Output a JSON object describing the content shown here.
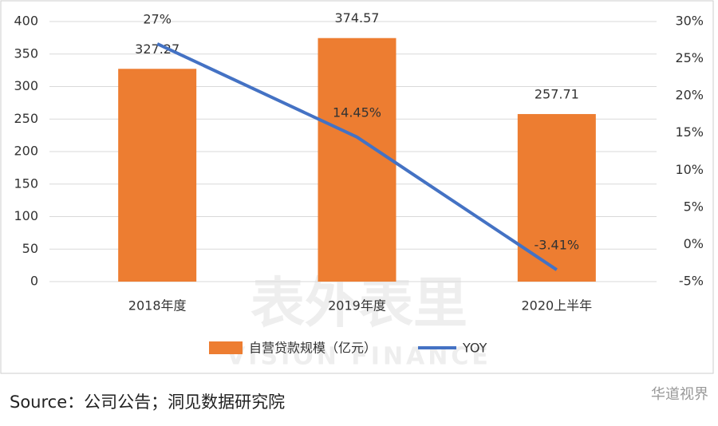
{
  "chart_data": {
    "type": "bar",
    "categories": [
      "2018年度",
      "2019年度",
      "2020上半年"
    ],
    "series": [
      {
        "name": "自营贷款规模（亿元）",
        "type": "bar",
        "color": "#ed7d31",
        "values": [
          327.27,
          374.57,
          257.71
        ]
      },
      {
        "name": "YOY",
        "type": "line",
        "axis": "y2",
        "color": "#4472c4",
        "values": [
          27,
          14.45,
          -3.41
        ],
        "value_labels": [
          "27%",
          "14.45%",
          "-3.41%"
        ]
      }
    ],
    "ylim": [
      0,
      400
    ],
    "yticks": [
      0,
      50,
      100,
      150,
      200,
      250,
      300,
      350,
      400
    ],
    "y2lim": [
      -5,
      30
    ],
    "y2ticks": [
      {
        "value": -5,
        "label": "-5%"
      },
      {
        "value": 0,
        "label": "0%"
      },
      {
        "value": 5,
        "label": "5%"
      },
      {
        "value": 10,
        "label": "10%"
      },
      {
        "value": 15,
        "label": "15%"
      },
      {
        "value": 20,
        "label": "20%"
      },
      {
        "value": 25,
        "label": "25%"
      },
      {
        "value": 30,
        "label": "30%"
      }
    ],
    "grid": true,
    "watermark": [
      "表外表里",
      "VISION FINANCE"
    ]
  },
  "source": "Source：公司公告；洞见数据研究院",
  "account": "华道视界"
}
